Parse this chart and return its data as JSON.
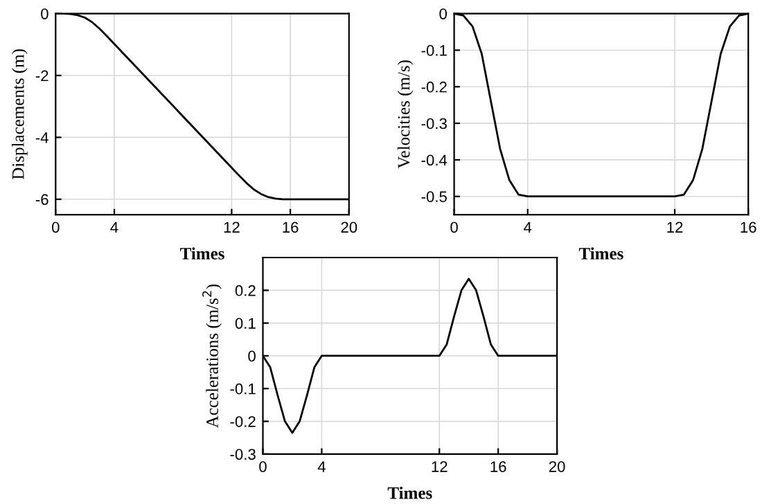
{
  "chart_data": [
    {
      "type": "line",
      "xlabel": "Times",
      "ylabel": "Displacements (m)",
      "xlim": [
        0,
        20
      ],
      "ylim": [
        -6.5,
        0
      ],
      "xticks": [
        0,
        4,
        12,
        16,
        20
      ],
      "yticks": [
        -6,
        -4,
        -2,
        0
      ],
      "grid": true,
      "line_style": "solid",
      "series": [
        {
          "color": "#000000",
          "x": [
            0,
            0.5,
            1,
            1.5,
            2,
            2.5,
            3,
            3.5,
            4,
            8,
            12,
            12.5,
            13,
            13.5,
            14,
            14.5,
            15,
            15.5,
            16,
            20
          ],
          "values": [
            0,
            0,
            -0.01,
            -0.05,
            -0.13,
            -0.28,
            -0.49,
            -0.73,
            -0.98,
            -2.98,
            -4.98,
            -5.23,
            -5.47,
            -5.68,
            -5.83,
            -5.93,
            -5.98,
            -6,
            -6,
            -6
          ]
        }
      ]
    },
    {
      "type": "line",
      "xlabel": "Times",
      "ylabel": "Velocities (m/s)",
      "xlim": [
        0,
        16
      ],
      "ylim": [
        -0.55,
        0
      ],
      "xticks": [
        0,
        4,
        12,
        16
      ],
      "yticks": [
        -0.5,
        -0.4,
        -0.3,
        -0.2,
        -0.1,
        0
      ],
      "grid": true,
      "line_style": "solid",
      "series": [
        {
          "color": "#000000",
          "x": [
            0,
            0.5,
            1,
            1.5,
            2,
            2.5,
            3,
            3.5,
            4,
            12,
            12.5,
            13,
            13.5,
            14,
            14.5,
            15,
            15.5,
            16
          ],
          "values": [
            0,
            -0.005,
            -0.035,
            -0.11,
            -0.24,
            -0.37,
            -0.455,
            -0.495,
            -0.5,
            -0.5,
            -0.495,
            -0.455,
            -0.37,
            -0.24,
            -0.11,
            -0.035,
            -0.005,
            0
          ]
        }
      ]
    },
    {
      "type": "line",
      "xlabel": "Times",
      "ylabel": "Accelerations (m/s$^{2}$)",
      "xlim": [
        0,
        20
      ],
      "ylim": [
        -0.3,
        0.3
      ],
      "xticks": [
        0,
        4,
        12,
        16,
        20
      ],
      "yticks": [
        -0.3,
        -0.2,
        -0.1,
        0,
        0.1,
        0.2
      ],
      "grid": true,
      "line_style": "solid",
      "series": [
        {
          "color": "#000000",
          "x": [
            0,
            0.5,
            1,
            1.5,
            2,
            2.5,
            3,
            3.5,
            4,
            12,
            12.5,
            13,
            13.5,
            14,
            14.5,
            15,
            15.5,
            16,
            20
          ],
          "values": [
            0,
            -0.035,
            -0.12,
            -0.2,
            -0.235,
            -0.2,
            -0.12,
            -0.035,
            0,
            0,
            0.035,
            0.12,
            0.2,
            0.235,
            0.2,
            0.12,
            0.035,
            0,
            0
          ]
        }
      ]
    }
  ]
}
